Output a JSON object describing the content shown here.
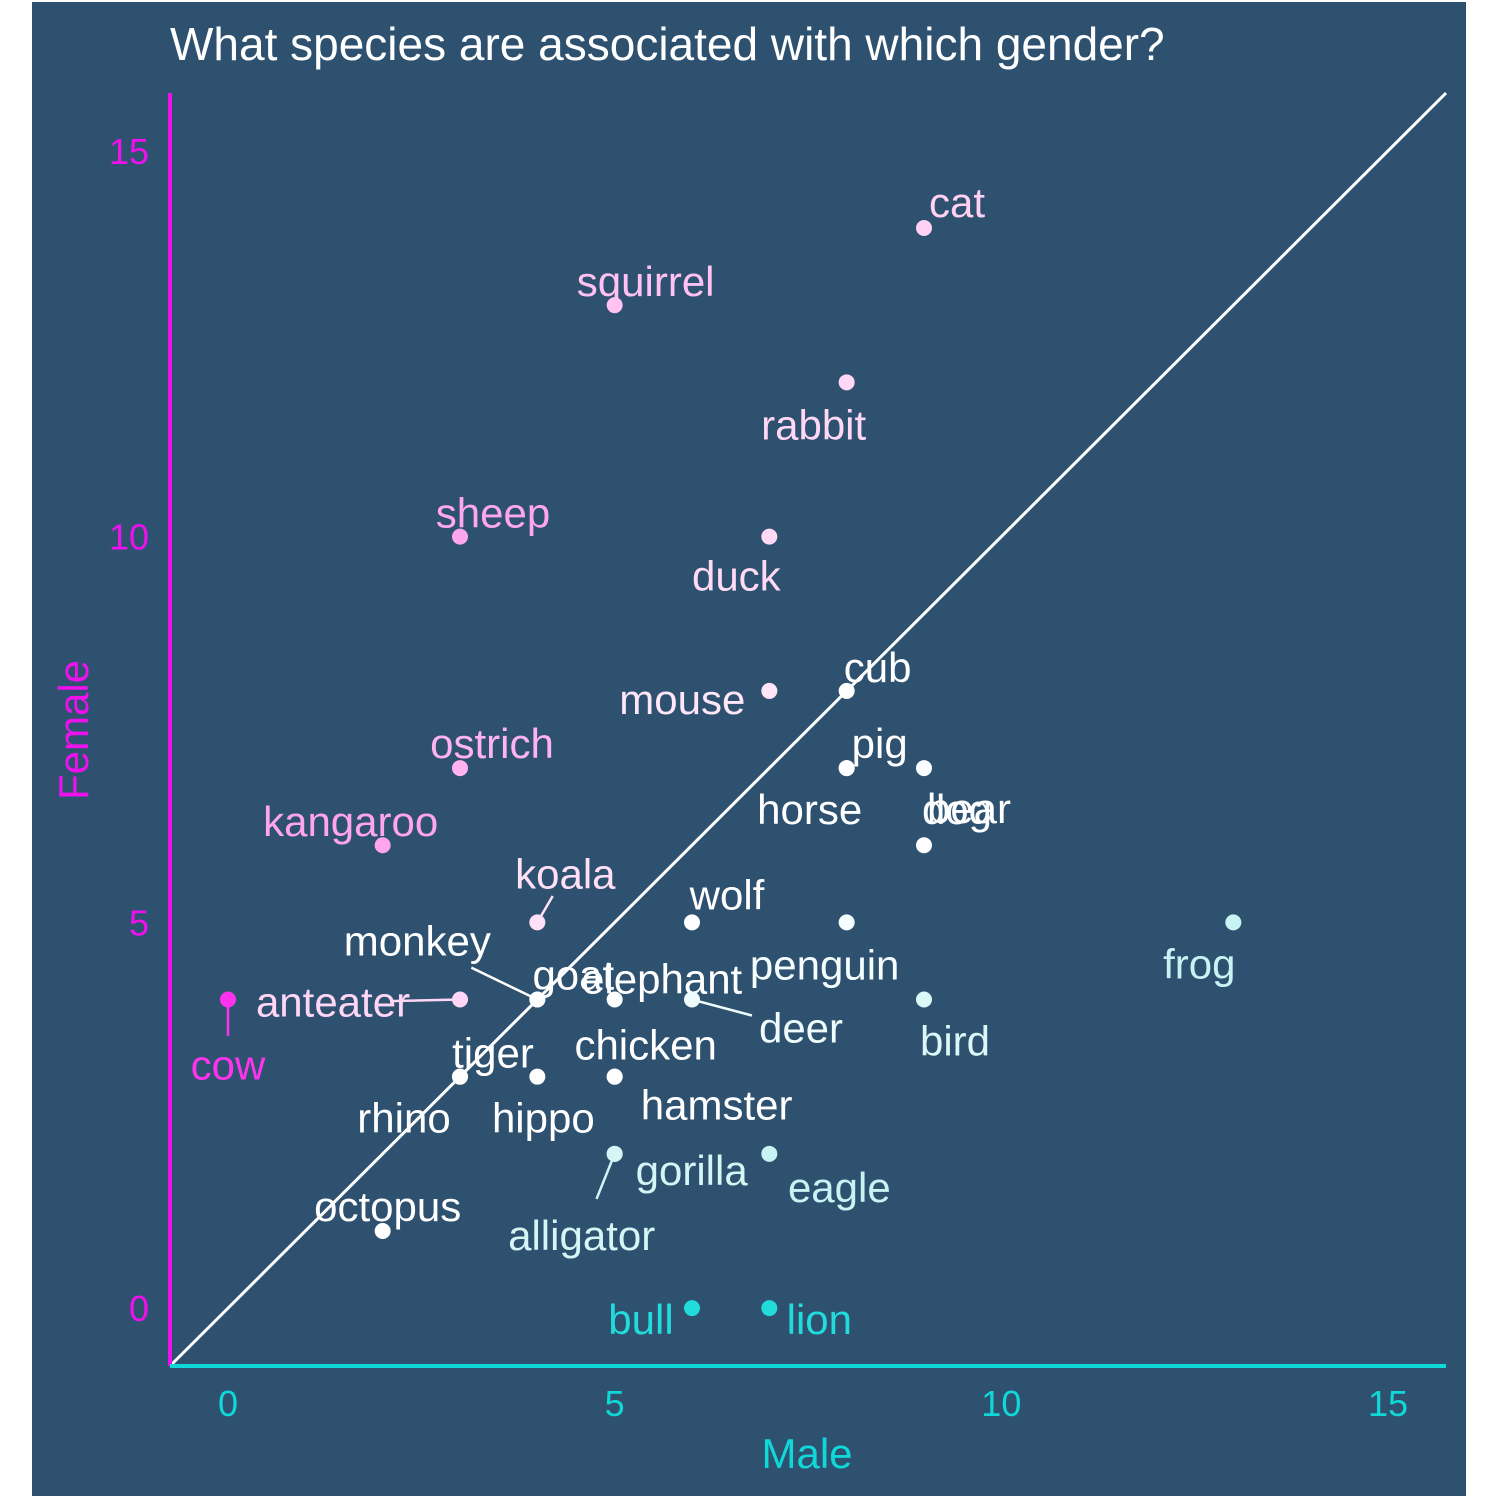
{
  "chart_data": {
    "type": "scatter",
    "title": "What species are associated with which gender?",
    "xlabel": "Male",
    "ylabel": "Female",
    "xlim": [
      -0.75,
      15.75
    ],
    "ylim": [
      -0.75,
      15.75
    ],
    "xticks": [
      "0",
      "5",
      "10",
      "15"
    ],
    "yticks": [
      "0",
      "5",
      "10",
      "15"
    ],
    "reference_line": "y = x",
    "colors": {
      "background": "#2e5170",
      "female_axis": "#ee11ee",
      "male_axis": "#10d8d8",
      "title": "#ffffff",
      "diagonal": "#ffffff"
    },
    "points": [
      {
        "label": "cat",
        "x": 9,
        "y": 14,
        "color": "#ffd2f3"
      },
      {
        "label": "squirrel",
        "x": 5,
        "y": 13,
        "color": "#ffc2f2"
      },
      {
        "label": "rabbit",
        "x": 8,
        "y": 12,
        "color": "#ffd8f5"
      },
      {
        "label": "sheep",
        "x": 3,
        "y": 10,
        "color": "#ffa6f0"
      },
      {
        "label": "duck",
        "x": 7,
        "y": 10,
        "color": "#ffdaf5"
      },
      {
        "label": "mouse",
        "x": 7,
        "y": 8,
        "color": "#ffe6f8"
      },
      {
        "label": "cub",
        "x": 8,
        "y": 8,
        "color": "#ffffff"
      },
      {
        "label": "ostrich",
        "x": 3,
        "y": 7,
        "color": "#ffb4f1"
      },
      {
        "label": "pig",
        "x": 8,
        "y": 7,
        "color": "#ffffff"
      },
      {
        "label": "horse",
        "x": 8,
        "y": 7,
        "color": "#ffffff"
      },
      {
        "label": "dog",
        "x": 9,
        "y": 7,
        "color": "#fafdff"
      },
      {
        "label": "kangaroo",
        "x": 2,
        "y": 6,
        "color": "#ffa4ee"
      },
      {
        "label": "bear",
        "x": 9,
        "y": 6,
        "color": "#ffffff"
      },
      {
        "label": "koala",
        "x": 4,
        "y": 5,
        "color": "#ffe0f7"
      },
      {
        "label": "wolf",
        "x": 6,
        "y": 5,
        "color": "#ffffff"
      },
      {
        "label": "penguin",
        "x": 8,
        "y": 5,
        "color": "#f6ffff"
      },
      {
        "label": "frog",
        "x": 13,
        "y": 5,
        "color": "#c8f3f3"
      },
      {
        "label": "cow",
        "x": 0,
        "y": 4,
        "color": "#ff33ee"
      },
      {
        "label": "anteater",
        "x": 3,
        "y": 4,
        "color": "#ffd6f5"
      },
      {
        "label": "monkey",
        "x": 4,
        "y": 4,
        "color": "#ffffff"
      },
      {
        "label": "goat",
        "x": 4,
        "y": 4,
        "color": "#ffffff"
      },
      {
        "label": "elephant",
        "x": 5,
        "y": 4,
        "color": "#ffffff"
      },
      {
        "label": "deer",
        "x": 6,
        "y": 4,
        "color": "#eefcfc"
      },
      {
        "label": "bird",
        "x": 9,
        "y": 4,
        "color": "#dcf7f7"
      },
      {
        "label": "tiger",
        "x": 3,
        "y": 3,
        "color": "#ffffff"
      },
      {
        "label": "rhino",
        "x": 3,
        "y": 3,
        "color": "#ffffff"
      },
      {
        "label": "hippo",
        "x": 4,
        "y": 3,
        "color": "#ffffff"
      },
      {
        "label": "chicken",
        "x": 5,
        "y": 3,
        "color": "#ffffff"
      },
      {
        "label": "hamster",
        "x": 5,
        "y": 3,
        "color": "#ffffff"
      },
      {
        "label": "gorilla",
        "x": 5,
        "y": 2,
        "color": "#d6f6f6"
      },
      {
        "label": "alligator",
        "x": 5,
        "y": 2,
        "color": "#d6f6f6"
      },
      {
        "label": "eagle",
        "x": 7,
        "y": 2,
        "color": "#c8f3f3"
      },
      {
        "label": "octopus",
        "x": 2,
        "y": 1,
        "color": "#ffffff"
      },
      {
        "label": "bull",
        "x": 6,
        "y": 0,
        "color": "#22dcdc"
      },
      {
        "label": "lion",
        "x": 7,
        "y": 0,
        "color": "#22dcdc"
      }
    ]
  }
}
